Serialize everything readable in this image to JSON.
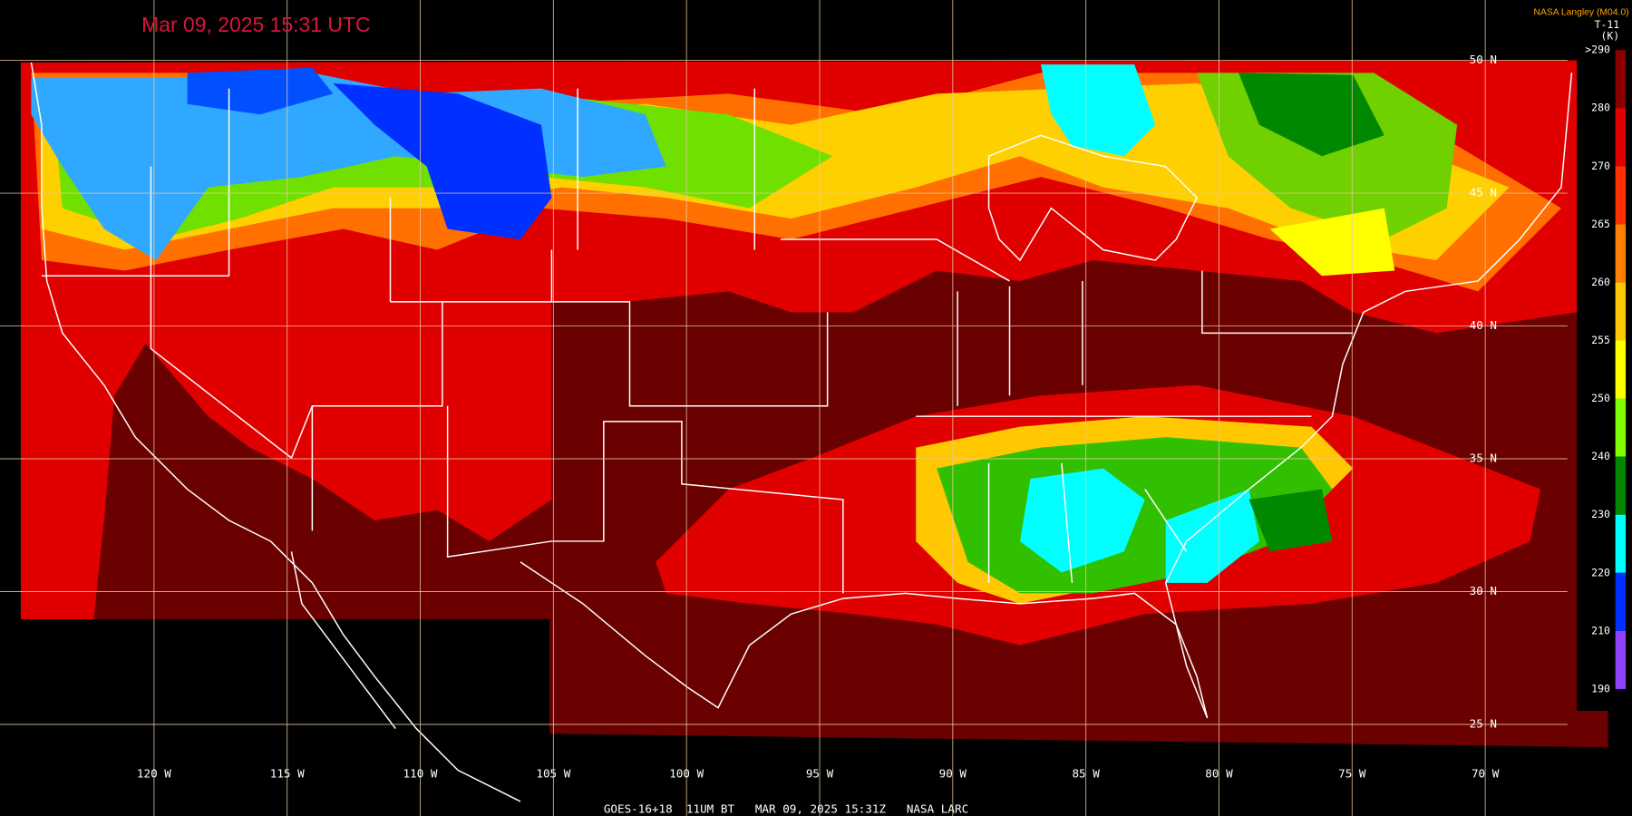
{
  "header": {
    "title": "Mar 09, 2025 15:31 UTC",
    "credit": "NASA Langley (M04.0)",
    "product": "T-11",
    "unit": "(K)"
  },
  "legend": {
    "ticks": [
      {
        "value": 290,
        "label": ">290"
      },
      280,
      270,
      265,
      260,
      255,
      250,
      240,
      230,
      220,
      210,
      190
    ],
    "colors": [
      "#8a0000",
      "#e00000",
      "#ff3000",
      "#ff8000",
      "#ffc800",
      "#ffff00",
      "#80ff00",
      "#008800",
      "#00ffff",
      "#0030ff",
      "#9040ff"
    ]
  },
  "map": {
    "longitude_labels": [
      "120 W",
      "115 W",
      "110 W",
      "105 W",
      "100 W",
      "95 W",
      "90 W",
      "85 W",
      "80 W",
      "75 W",
      "70 W"
    ],
    "latitude_labels": [
      "50 N",
      "45 N",
      "40 N",
      "35 N",
      "30 N",
      "25 N"
    ]
  },
  "footer": "GOES-16+18  11UM BT   MAR 09, 2025 15:31Z   NASA LARC"
}
